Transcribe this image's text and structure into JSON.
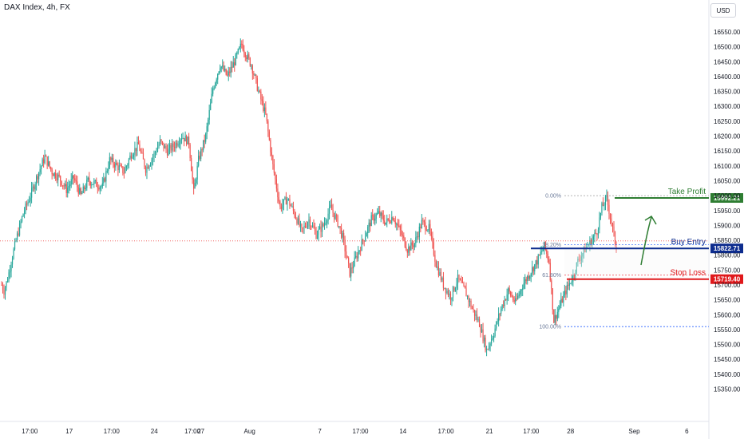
{
  "header": {
    "title": "DAX Index, 4h, FX",
    "currency": "USD"
  },
  "chart_data": {
    "type": "candlestick",
    "title": "DAX Index, 4h, FX",
    "ylim": [
      15325,
      16600
    ],
    "y_ticks": [
      15350,
      15400,
      15450,
      15500,
      15550,
      15600,
      15650,
      15700,
      15750,
      15800,
      15850,
      15900,
      15950,
      16000,
      16050,
      16100,
      16150,
      16200,
      16250,
      16300,
      16350,
      16400,
      16450,
      16500,
      16550
    ],
    "x_ticks": [
      {
        "label": "17:00",
        "pos": 0.042
      },
      {
        "label": "17",
        "pos": 0.0977
      },
      {
        "label": "17:00",
        "pos": 0.1574
      },
      {
        "label": "24",
        "pos": 0.2176
      },
      {
        "label": "17:00",
        "pos": 0.2715
      },
      {
        "label": "27",
        "pos": 0.2834
      },
      {
        "label": "Aug",
        "pos": 0.3521
      },
      {
        "label": "7",
        "pos": 0.4511
      },
      {
        "label": "17:00",
        "pos": 0.5084
      },
      {
        "label": "14",
        "pos": 0.5685
      },
      {
        "label": "17:00",
        "pos": 0.629
      },
      {
        "label": "21",
        "pos": 0.6904
      },
      {
        "label": "17:00",
        "pos": 0.7493
      },
      {
        "label": "28",
        "pos": 0.8049
      },
      {
        "label": "Sep",
        "pos": 0.8947
      },
      {
        "label": "6",
        "pos": 0.9688
      }
    ],
    "current_price": 15992.21,
    "dotted_price_line": 15848,
    "anchors": [
      [
        0,
        15700
      ],
      [
        2,
        15680
      ],
      [
        5,
        15720
      ],
      [
        8,
        15780
      ],
      [
        12,
        15850
      ],
      [
        18,
        15940
      ],
      [
        24,
        16000
      ],
      [
        30,
        16070
      ],
      [
        36,
        16130
      ],
      [
        42,
        16080
      ],
      [
        48,
        16060
      ],
      [
        54,
        16020
      ],
      [
        60,
        16060
      ],
      [
        66,
        16000
      ],
      [
        72,
        16050
      ],
      [
        78,
        16040
      ],
      [
        84,
        16030
      ],
      [
        90,
        16120
      ],
      [
        96,
        16100
      ],
      [
        102,
        16080
      ],
      [
        108,
        16140
      ],
      [
        114,
        16170
      ],
      [
        120,
        16090
      ],
      [
        126,
        16130
      ],
      [
        132,
        16180
      ],
      [
        138,
        16150
      ],
      [
        144,
        16170
      ],
      [
        150,
        16200
      ],
      [
        156,
        16180
      ],
      [
        160,
        16010
      ],
      [
        164,
        16120
      ],
      [
        170,
        16200
      ],
      [
        176,
        16360
      ],
      [
        182,
        16440
      ],
      [
        188,
        16400
      ],
      [
        194,
        16450
      ],
      [
        200,
        16510
      ],
      [
        204,
        16470
      ],
      [
        208,
        16440
      ],
      [
        214,
        16350
      ],
      [
        220,
        16270
      ],
      [
        226,
        16100
      ],
      [
        232,
        15960
      ],
      [
        238,
        15990
      ],
      [
        244,
        15940
      ],
      [
        250,
        15880
      ],
      [
        256,
        15920
      ],
      [
        262,
        15870
      ],
      [
        268,
        15900
      ],
      [
        274,
        15960
      ],
      [
        280,
        15910
      ],
      [
        284,
        15860
      ],
      [
        290,
        15740
      ],
      [
        296,
        15800
      ],
      [
        302,
        15860
      ],
      [
        308,
        15920
      ],
      [
        314,
        15940
      ],
      [
        320,
        15910
      ],
      [
        326,
        15930
      ],
      [
        332,
        15880
      ],
      [
        338,
        15820
      ],
      [
        344,
        15840
      ],
      [
        350,
        15910
      ],
      [
        356,
        15890
      ],
      [
        362,
        15770
      ],
      [
        368,
        15700
      ],
      [
        374,
        15660
      ],
      [
        380,
        15720
      ],
      [
        386,
        15680
      ],
      [
        392,
        15620
      ],
      [
        398,
        15570
      ],
      [
        404,
        15480
      ],
      [
        410,
        15540
      ],
      [
        416,
        15620
      ],
      [
        422,
        15680
      ],
      [
        428,
        15640
      ],
      [
        434,
        15700
      ],
      [
        440,
        15740
      ],
      [
        446,
        15780
      ],
      [
        452,
        15830
      ],
      [
        456,
        15780
      ],
      [
        460,
        15580
      ],
      [
        464,
        15620
      ],
      [
        470,
        15680
      ],
      [
        476,
        15730
      ],
      [
        480,
        15780
      ],
      [
        486,
        15820
      ],
      [
        490,
        15840
      ],
      [
        496,
        15880
      ],
      [
        500,
        15960
      ],
      [
        504,
        15990
      ],
      [
        508,
        15910
      ],
      [
        512,
        15822
      ]
    ],
    "fibonacci": {
      "levels": [
        {
          "label": "0.00%",
          "price": 16000
        },
        {
          "label": "38.20%",
          "price": 15835
        },
        {
          "label": "61.80%",
          "price": 15733
        },
        {
          "label": "100.00%",
          "price": 15560
        }
      ]
    },
    "annotations": [
      {
        "label": "Take Profit",
        "price": 15992.21,
        "price_label": "15992.21",
        "color": "#2e7d32"
      },
      {
        "label": "Buy Entry",
        "price": 15822.71,
        "price_label": "15822.71",
        "color": "#0d2c8e"
      },
      {
        "label": "Stop Loss",
        "price": 15719.4,
        "price_label": "15719.40",
        "color": "#e0181b"
      }
    ],
    "colors": {
      "up": "#26a69a",
      "down": "#ef5350"
    }
  }
}
